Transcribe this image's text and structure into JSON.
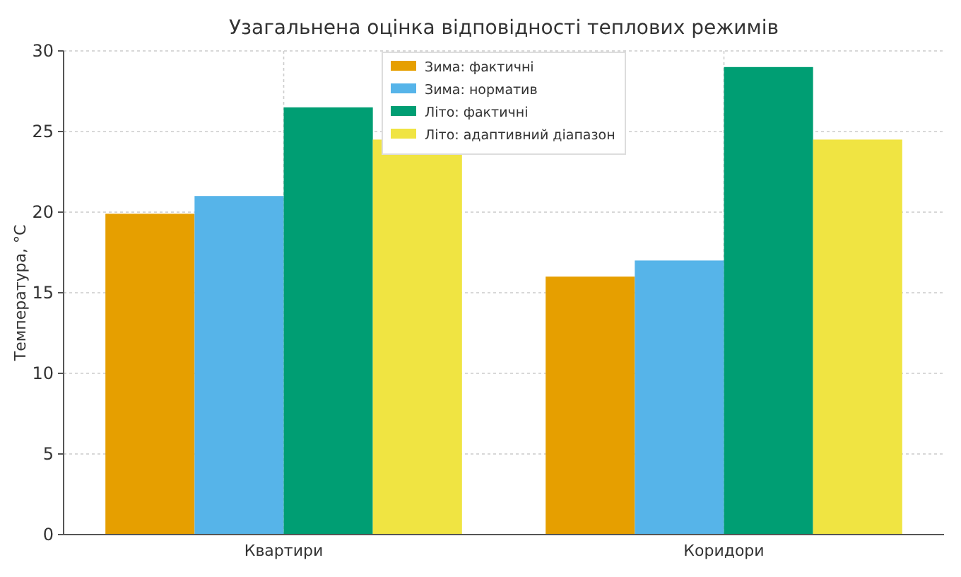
{
  "chart_data": {
    "type": "bar",
    "title": "Узагальнена оцінка відповідності теплових режимів",
    "ylabel": "Температура, °C",
    "categories": [
      "Квартири",
      "Коридори"
    ],
    "series": [
      {
        "name": "Зима: фактичні",
        "color": "#e69f00",
        "values": [
          19.9,
          16
        ]
      },
      {
        "name": "Зима: норматив",
        "color": "#56b4e9",
        "values": [
          21,
          17
        ]
      },
      {
        "name": "Літо: фактичні",
        "color": "#009e73",
        "values": [
          26.5,
          29
        ]
      },
      {
        "name": "Літо: адаптивний діапазон",
        "color": "#f0e442",
        "values": [
          24.5,
          24.5
        ]
      }
    ],
    "ylim": [
      0,
      30
    ],
    "yticks": [
      0,
      5,
      10,
      15,
      20,
      25,
      30
    ],
    "grid": true,
    "legend": "top"
  }
}
